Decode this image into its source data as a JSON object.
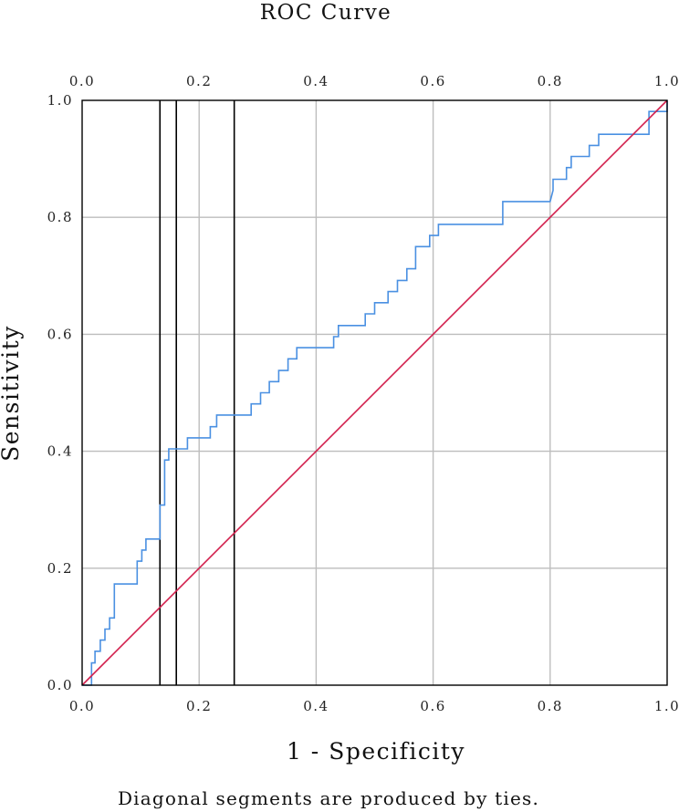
{
  "chart_data": {
    "type": "line",
    "title": "ROC Curve",
    "xlabel": "1 - Specificity",
    "ylabel": "Sensitivity",
    "footnote": "Diagonal segments are produced by ties.",
    "xlim": [
      0,
      1
    ],
    "ylim": [
      0,
      1
    ],
    "grid": true,
    "x_ticks": [
      "0.0",
      "0.2",
      "0.4",
      "0.6",
      "0.8",
      "1.0"
    ],
    "y_ticks": [
      "0.0",
      "0.2",
      "0.4",
      "0.6",
      "0.8",
      "1.0"
    ],
    "top_ticks": [
      "0.0",
      "0.2",
      "0.4",
      "0.6",
      "0.8",
      "1.0"
    ],
    "vertical_lines": [
      0.133,
      0.161,
      0.26
    ],
    "colors": {
      "roc_curve": "#4a90e2",
      "reference_line": "#d21f4c",
      "grid": "#bdbdbd",
      "vertical_lines": "#000000"
    },
    "series": [
      {
        "role": "roc-curve",
        "x": [
          0.0,
          0.016,
          0.016,
          0.022,
          0.022,
          0.031,
          0.031,
          0.039,
          0.039,
          0.047,
          0.047,
          0.055,
          0.055,
          0.063,
          0.063,
          0.07,
          0.07,
          0.094,
          0.094,
          0.102,
          0.102,
          0.109,
          0.109,
          0.117,
          0.117,
          0.133,
          0.133,
          0.141,
          0.141,
          0.148,
          0.148,
          0.156,
          0.156,
          0.18,
          0.18,
          0.219,
          0.219,
          0.23,
          0.23,
          0.289,
          0.289,
          0.305,
          0.305,
          0.32,
          0.32,
          0.336,
          0.336,
          0.352,
          0.352,
          0.367,
          0.367,
          0.43,
          0.43,
          0.438,
          0.438,
          0.484,
          0.484,
          0.5,
          0.5,
          0.523,
          0.523,
          0.531,
          0.531,
          0.539,
          0.539,
          0.555,
          0.555,
          0.57,
          0.57,
          0.594,
          0.594,
          0.609,
          0.609,
          0.625,
          0.625,
          0.719,
          0.719,
          0.8,
          0.805,
          0.805,
          0.828,
          0.828,
          0.836,
          0.836,
          0.867,
          0.867,
          0.883,
          0.883,
          0.969,
          0.969,
          1.0,
          1.0
        ],
        "y": [
          0.0,
          0.0,
          0.038,
          0.038,
          0.058,
          0.058,
          0.077,
          0.077,
          0.096,
          0.096,
          0.115,
          0.115,
          0.173,
          0.173,
          0.173,
          0.173,
          0.173,
          0.173,
          0.212,
          0.212,
          0.231,
          0.231,
          0.25,
          0.25,
          0.25,
          0.25,
          0.308,
          0.308,
          0.385,
          0.385,
          0.404,
          0.404,
          0.404,
          0.404,
          0.423,
          0.423,
          0.442,
          0.442,
          0.462,
          0.462,
          0.481,
          0.481,
          0.5,
          0.5,
          0.519,
          0.519,
          0.538,
          0.538,
          0.558,
          0.558,
          0.577,
          0.577,
          0.596,
          0.596,
          0.615,
          0.615,
          0.635,
          0.635,
          0.654,
          0.654,
          0.673,
          0.673,
          0.673,
          0.673,
          0.692,
          0.692,
          0.712,
          0.712,
          0.75,
          0.75,
          0.769,
          0.769,
          0.788,
          0.788,
          0.788,
          0.788,
          0.827,
          0.827,
          0.846,
          0.865,
          0.865,
          0.885,
          0.885,
          0.904,
          0.904,
          0.923,
          0.923,
          0.942,
          0.942,
          0.981,
          0.981,
          1.0
        ]
      },
      {
        "role": "reference-line",
        "x": [
          0,
          1
        ],
        "y": [
          0,
          1
        ]
      }
    ]
  }
}
